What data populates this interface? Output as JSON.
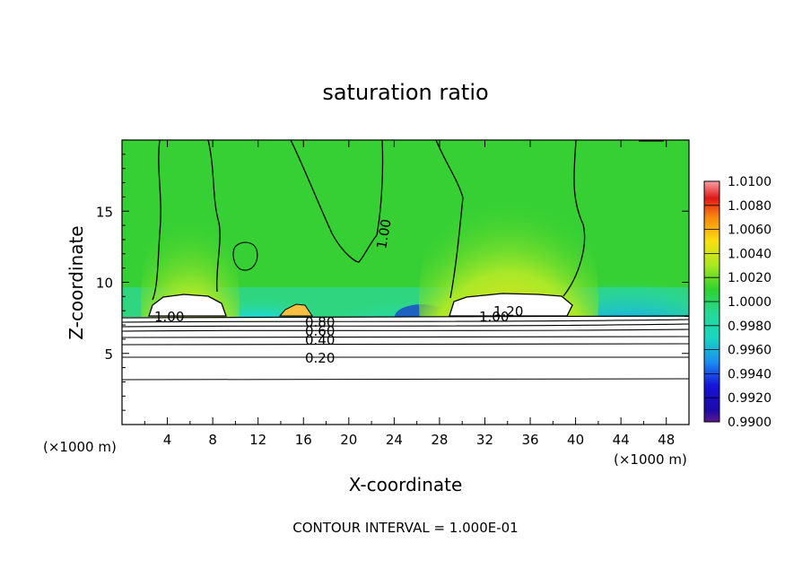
{
  "chart_data": {
    "type": "heatmap",
    "title": "saturation ratio",
    "xlabel": "X-coordinate",
    "ylabel": "Z-coordinate",
    "x_units": "(×1000 m)",
    "x_units_right": "(×1000 m)",
    "xlim": [
      0,
      50
    ],
    "ylim": [
      0,
      20
    ],
    "x_ticks": [
      4,
      8,
      12,
      16,
      20,
      24,
      28,
      32,
      36,
      40,
      44,
      48
    ],
    "y_ticks": [
      5,
      10,
      15
    ],
    "footer": "CONTOUR INTERVAL = 1.000E-01",
    "colorbar": {
      "range": [
        0.99,
        1.01
      ],
      "tick_labels": [
        "0.9900",
        "0.9920",
        "0.9940",
        "0.9960",
        "0.9980",
        "1.0000",
        "1.0020",
        "1.0040",
        "1.0060",
        "1.0080",
        "1.0100"
      ]
    },
    "contour_levels": [
      {
        "label": "0.20",
        "z": 4.8
      },
      {
        "label": "0.40",
        "z": 6.1
      },
      {
        "label": "0.60",
        "z": 6.8
      },
      {
        "label": "0.80",
        "z": 7.3
      },
      {
        "label": "1.00",
        "z": 7.8
      },
      {
        "label": "1.20",
        "z": 8.2
      },
      {
        "label": "1.00",
        "z": 15.0
      }
    ]
  }
}
